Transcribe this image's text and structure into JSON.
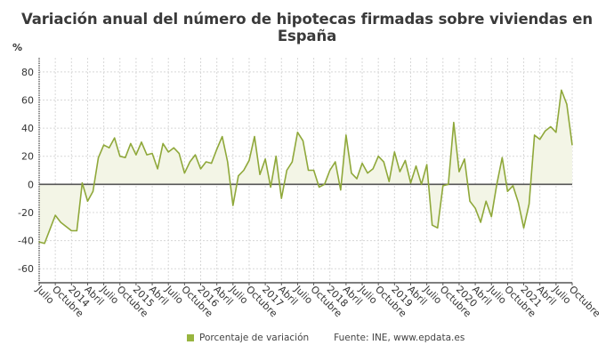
{
  "chart_data": {
    "type": "area",
    "title": "Variación anual del número de hipotecas firmadas sobre viviendas en España",
    "ylabel": "%",
    "ylim": [
      -70,
      90
    ],
    "yticks": [
      -60,
      -40,
      -20,
      0,
      20,
      40,
      60,
      80
    ],
    "grid": true,
    "legend_position": "bottom",
    "line_color": "#8fa83a",
    "fill_color": "#f3f5e6",
    "x_tick_labels": [
      "Julio",
      "Octubre",
      "2014",
      "Abril",
      "Julio",
      "Octubre",
      "2015",
      "Abril",
      "Julio",
      "Octubre",
      "2016",
      "Abril",
      "Julio",
      "Octubre",
      "2017",
      "Abril",
      "Julio",
      "Octubre",
      "2018",
      "Abril",
      "Julio",
      "Octubre",
      "2019",
      "Abril",
      "Julio",
      "Octubre",
      "2020",
      "Abril",
      "Julio",
      "Octubre",
      "2021",
      "Abril",
      "Julio",
      "Octubre"
    ],
    "x_range": [
      "2013-07",
      "2021-10"
    ],
    "series": [
      {
        "name": "Porcentaje de variación",
        "values": [
          -41,
          -42,
          -32,
          -22,
          -27,
          -30,
          -33,
          -33,
          1,
          -12,
          -5,
          19,
          28,
          26,
          33,
          20,
          19,
          29,
          21,
          30,
          21,
          22,
          11,
          29,
          23,
          26,
          22,
          8,
          16,
          21,
          11,
          16,
          15,
          25,
          34,
          16,
          -15,
          6,
          10,
          17,
          34,
          7,
          18,
          -2,
          20,
          -10,
          10,
          16,
          37,
          31,
          10,
          10,
          -2,
          0,
          10,
          16,
          -4,
          35,
          8,
          4,
          15,
          8,
          11,
          20,
          16,
          2,
          23,
          9,
          17,
          1,
          13,
          0,
          14,
          -29,
          -31,
          -1,
          0,
          44,
          9,
          18,
          -12,
          -17,
          -27,
          -12,
          -23,
          0,
          19,
          -5,
          -1,
          -13,
          -31,
          -14,
          35,
          32,
          38,
          41,
          37,
          67,
          57,
          28
        ]
      }
    ]
  },
  "legend": {
    "label": "Porcentaje de variación"
  },
  "source": "Fuente: INE, www.epdata.es"
}
